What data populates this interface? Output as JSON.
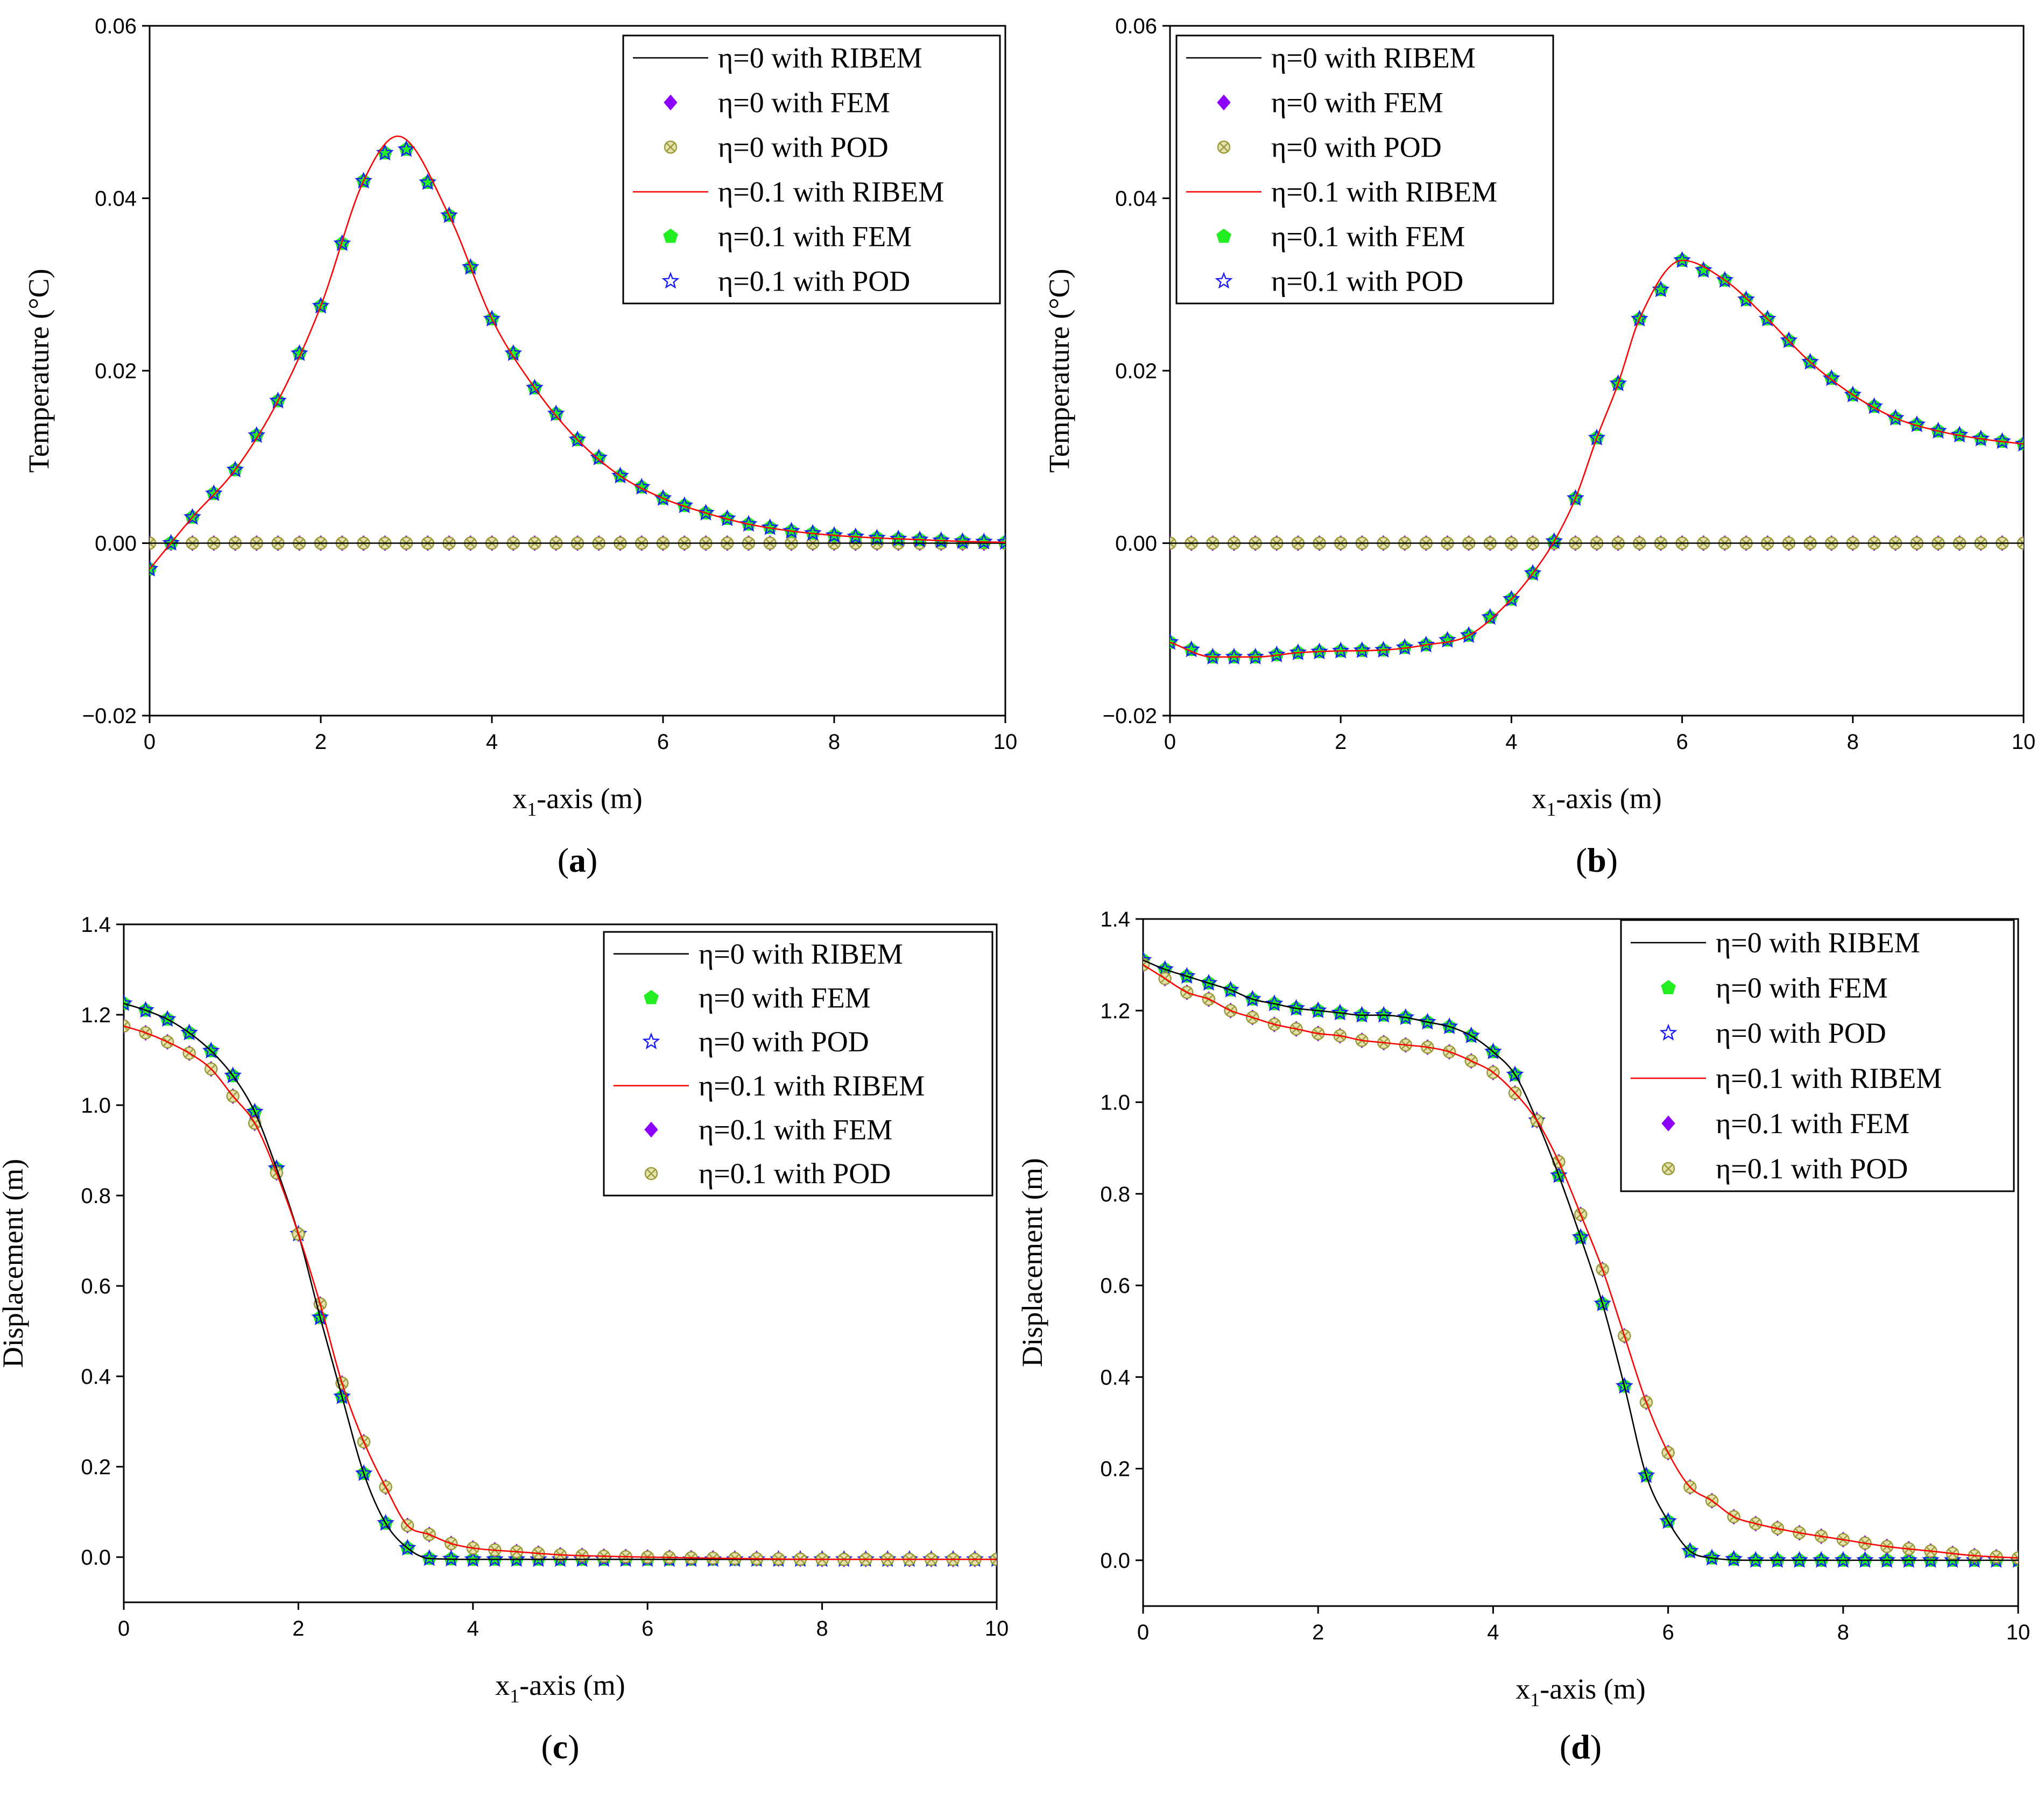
{
  "colors": {
    "black_line": "#000000",
    "red_line": "#ff0000",
    "fem_diamond": "#8b00ff",
    "fem_pentagon": "#22ee22",
    "pod_star": "#1a1aff",
    "pod_cross": "#9a9a3a"
  },
  "chart_data": [
    {
      "type": "line",
      "caption_pre": "(",
      "caption_letter": "a",
      "caption_post": ")",
      "xlabel_pre": "x",
      "xlabel_sub": "1",
      "xlabel_post": "-axis (m)",
      "ylabel": "Temperature (°C)",
      "xlim": [
        0,
        10
      ],
      "ylim": [
        -0.02,
        0.06
      ],
      "xticks": [
        0,
        2,
        4,
        6,
        8,
        10
      ],
      "xtick_labels": [
        "0",
        "2",
        "4",
        "6",
        "8",
        "10"
      ],
      "yticks": [
        -0.02,
        0,
        0.02,
        0.04,
        0.06
      ],
      "ytick_labels": [
        "−0.02",
        "0.00",
        "0.02",
        "0.04",
        "0.06"
      ],
      "legend_position": "top-right",
      "series": [
        {
          "name": "η=0 with RIBEM",
          "kind": "line",
          "color": "black",
          "data": "zero"
        },
        {
          "name": "η=0 with FEM",
          "kind": "diamond",
          "color": "fem_diamond",
          "data": "zero"
        },
        {
          "name": "η=0 with POD",
          "kind": "cross",
          "color": "pod_cross",
          "data": "zero"
        },
        {
          "name": "η=0.1 with RIBEM",
          "kind": "line",
          "color": "red",
          "data": "main"
        },
        {
          "name": "η=0.1 with FEM",
          "kind": "pentagon",
          "color": "fem_pentagon",
          "data": "main"
        },
        {
          "name": "η=0.1 with POD",
          "kind": "star",
          "color": "pod_star",
          "data": "main"
        }
      ],
      "zero": {
        "x": [
          0,
          10
        ],
        "y": [
          0,
          0
        ]
      },
      "main": {
        "x": [
          0,
          0.5,
          1,
          1.5,
          2,
          2.5,
          2.9,
          3.5,
          4,
          4.5,
          5,
          5.5,
          6,
          6.5,
          7,
          7.5,
          8,
          8.5,
          9,
          9.5,
          10
        ],
        "y": [
          -0.003,
          0.003,
          0.0085,
          0.0165,
          0.0275,
          0.042,
          0.0472,
          0.038,
          0.026,
          0.018,
          0.012,
          0.0078,
          0.0052,
          0.0035,
          0.0022,
          0.0014,
          0.0009,
          0.0006,
          0.0004,
          0.0002,
          0.0001
        ]
      }
    },
    {
      "type": "line",
      "caption_pre": "(",
      "caption_letter": "b",
      "caption_post": ")",
      "xlabel_pre": "x",
      "xlabel_sub": "1",
      "xlabel_post": "-axis (m)",
      "ylabel": "Temperature (°C)",
      "xlim": [
        0,
        10
      ],
      "ylim": [
        -0.02,
        0.06
      ],
      "xticks": [
        0,
        2,
        4,
        6,
        8,
        10
      ],
      "xtick_labels": [
        "0",
        "2",
        "4",
        "6",
        "8",
        "10"
      ],
      "yticks": [
        -0.02,
        0,
        0.02,
        0.04,
        0.06
      ],
      "ytick_labels": [
        "−0.02",
        "0.00",
        "0.02",
        "0.04",
        "0.06"
      ],
      "legend_position": "top-right",
      "series": [
        {
          "name": "η=0 with RIBEM",
          "kind": "line",
          "color": "black",
          "data": "zero"
        },
        {
          "name": "η=0 with FEM",
          "kind": "diamond",
          "color": "fem_diamond",
          "data": "zero"
        },
        {
          "name": "η=0 with POD",
          "kind": "cross",
          "color": "pod_cross",
          "data": "zero"
        },
        {
          "name": "η=0.1 with RIBEM",
          "kind": "line",
          "color": "red",
          "data": "main"
        },
        {
          "name": "η=0.1 with FEM",
          "kind": "pentagon",
          "color": "fem_pentagon",
          "data": "main"
        },
        {
          "name": "η=0.1 with POD",
          "kind": "star",
          "color": "pod_star",
          "data": "main"
        }
      ],
      "zero": {
        "x": [
          0,
          10
        ],
        "y": [
          0,
          0
        ]
      },
      "main": {
        "x": [
          0,
          0.5,
          1,
          1.5,
          2,
          2.5,
          3,
          3.5,
          4,
          4.25,
          4.5,
          4.75,
          5,
          5.25,
          5.5,
          6,
          6.5,
          7,
          7.5,
          8,
          8.5,
          9,
          9.5,
          10
        ],
        "y": [
          -0.0115,
          -0.0132,
          -0.0132,
          -0.0127,
          -0.0125,
          -0.0124,
          -0.0118,
          -0.0107,
          -0.0065,
          -0.0035,
          0.0002,
          0.0052,
          0.0122,
          0.0185,
          0.026,
          0.0328,
          0.0305,
          0.026,
          0.021,
          0.0172,
          0.0145,
          0.013,
          0.0121,
          0.0115
        ]
      }
    },
    {
      "type": "line",
      "caption_pre": "(",
      "caption_letter": "c",
      "caption_post": ")",
      "xlabel_pre": "x",
      "xlabel_sub": "1",
      "xlabel_post": "-axis (m)",
      "ylabel": "Displacement (m)",
      "xlim": [
        0,
        10
      ],
      "ylim": [
        -0.1,
        1.4
      ],
      "xticks": [
        0,
        2,
        4,
        6,
        8,
        10
      ],
      "xtick_labels": [
        "0",
        "2",
        "4",
        "6",
        "8",
        "10"
      ],
      "yticks": [
        0,
        0.2,
        0.4,
        0.6,
        0.8,
        1.0,
        1.2,
        1.4
      ],
      "ytick_labels": [
        "0.0",
        "0.2",
        "0.4",
        "0.6",
        "0.8",
        "1.0",
        "1.2",
        "1.4"
      ],
      "legend_position": "top-right",
      "series": [
        {
          "name": "η=0 with RIBEM",
          "kind": "line",
          "color": "black",
          "data": "eta0"
        },
        {
          "name": "η=0 with FEM",
          "kind": "pentagon",
          "color": "fem_pentagon",
          "data": "eta0"
        },
        {
          "name": "η=0 with POD",
          "kind": "star",
          "color": "pod_star",
          "data": "eta0"
        },
        {
          "name": "η=0.1 with RIBEM",
          "kind": "line",
          "color": "red",
          "data": "eta01"
        },
        {
          "name": "η=0.1 with FEM",
          "kind": "diamond",
          "color": "fem_diamond",
          "data": "eta01"
        },
        {
          "name": "η=0.1 with POD",
          "kind": "cross",
          "color": "pod_cross",
          "data": "eta01"
        }
      ],
      "eta0": {
        "x": [
          0,
          0.25,
          0.5,
          0.75,
          1,
          1.25,
          1.5,
          1.75,
          2,
          2.25,
          2.5,
          2.75,
          3,
          3.25,
          3.5,
          4,
          5,
          6,
          7,
          8,
          9,
          10
        ],
        "y": [
          1.225,
          1.21,
          1.19,
          1.16,
          1.12,
          1.065,
          0.985,
          0.86,
          0.715,
          0.53,
          0.355,
          0.185,
          0.075,
          0.02,
          -0.003,
          -0.005,
          -0.005,
          -0.005,
          -0.005,
          -0.005,
          -0.005,
          -0.005
        ]
      },
      "eta01": {
        "x": [
          0,
          0.25,
          0.5,
          0.75,
          1,
          1.25,
          1.5,
          1.75,
          2,
          2.25,
          2.5,
          2.75,
          3,
          3.25,
          3.5,
          3.75,
          4,
          4.5,
          5,
          5.5,
          6,
          7,
          8,
          9,
          10
        ],
        "y": [
          1.175,
          1.16,
          1.14,
          1.115,
          1.08,
          1.02,
          0.96,
          0.85,
          0.715,
          0.56,
          0.385,
          0.255,
          0.155,
          0.07,
          0.05,
          0.03,
          0.02,
          0.012,
          0.005,
          0.002,
          0,
          -0.003,
          -0.005,
          -0.005,
          -0.005
        ]
      }
    },
    {
      "type": "line",
      "caption_pre": "(",
      "caption_letter": "d",
      "caption_post": ")",
      "xlabel_pre": "x",
      "xlabel_sub": "1",
      "xlabel_post": "-axis (m)",
      "ylabel": "Displacement (m)",
      "xlim": [
        0,
        10
      ],
      "ylim": [
        -0.1,
        1.4
      ],
      "xticks": [
        0,
        2,
        4,
        6,
        8,
        10
      ],
      "xtick_labels": [
        "0",
        "2",
        "4",
        "6",
        "8",
        "10"
      ],
      "yticks": [
        0,
        0.2,
        0.4,
        0.6,
        0.8,
        1.0,
        1.2,
        1.4
      ],
      "ytick_labels": [
        "0.0",
        "0.2",
        "0.4",
        "0.6",
        "0.8",
        "1.0",
        "1.2",
        "1.4"
      ],
      "legend_position": "top-right",
      "series": [
        {
          "name": "η=0 with RIBEM",
          "kind": "line",
          "color": "black",
          "data": "eta0"
        },
        {
          "name": "η=0 with FEM",
          "kind": "pentagon",
          "color": "fem_pentagon",
          "data": "eta0"
        },
        {
          "name": "η=0 with POD",
          "kind": "star",
          "color": "pod_star",
          "data": "eta0"
        },
        {
          "name": "η=0.1 with RIBEM",
          "kind": "line",
          "color": "red",
          "data": "eta01"
        },
        {
          "name": "η=0.1 with FEM",
          "kind": "diamond",
          "color": "fem_diamond",
          "data": "eta01"
        },
        {
          "name": "η=0.1 with POD",
          "kind": "cross",
          "color": "pod_cross",
          "data": "eta01"
        }
      ],
      "eta0": {
        "x": [
          0,
          0.25,
          0.5,
          0.75,
          1,
          1.25,
          1.5,
          1.75,
          2,
          2.25,
          2.5,
          2.75,
          3,
          3.25,
          3.5,
          3.75,
          4,
          4.25,
          4.5,
          4.75,
          5,
          5.25,
          5.5,
          5.75,
          6,
          6.25,
          6.5,
          7,
          8,
          9,
          10
        ],
        "y": [
          1.31,
          1.29,
          1.275,
          1.26,
          1.245,
          1.225,
          1.215,
          1.205,
          1.2,
          1.195,
          1.19,
          1.19,
          1.185,
          1.175,
          1.165,
          1.145,
          1.11,
          1.06,
          0.96,
          0.84,
          0.705,
          0.56,
          0.38,
          0.185,
          0.085,
          0.02,
          0.005,
          0,
          0,
          0,
          0
        ]
      },
      "eta01": {
        "x": [
          0,
          0.25,
          0.5,
          0.75,
          1,
          1.25,
          1.5,
          1.75,
          2,
          2.25,
          2.5,
          2.75,
          3,
          3.25,
          3.5,
          3.75,
          4,
          4.25,
          4.5,
          4.75,
          5,
          5.25,
          5.5,
          5.75,
          6,
          6.25,
          6.5,
          6.75,
          7,
          7.5,
          8,
          8.5,
          9,
          9.5,
          10
        ],
        "y": [
          1.3,
          1.27,
          1.24,
          1.225,
          1.2,
          1.185,
          1.17,
          1.16,
          1.15,
          1.145,
          1.135,
          1.13,
          1.125,
          1.12,
          1.11,
          1.09,
          1.065,
          1.02,
          0.96,
          0.87,
          0.755,
          0.635,
          0.49,
          0.345,
          0.235,
          0.16,
          0.13,
          0.095,
          0.08,
          0.06,
          0.045,
          0.03,
          0.02,
          0.01,
          0.005
        ]
      }
    }
  ]
}
